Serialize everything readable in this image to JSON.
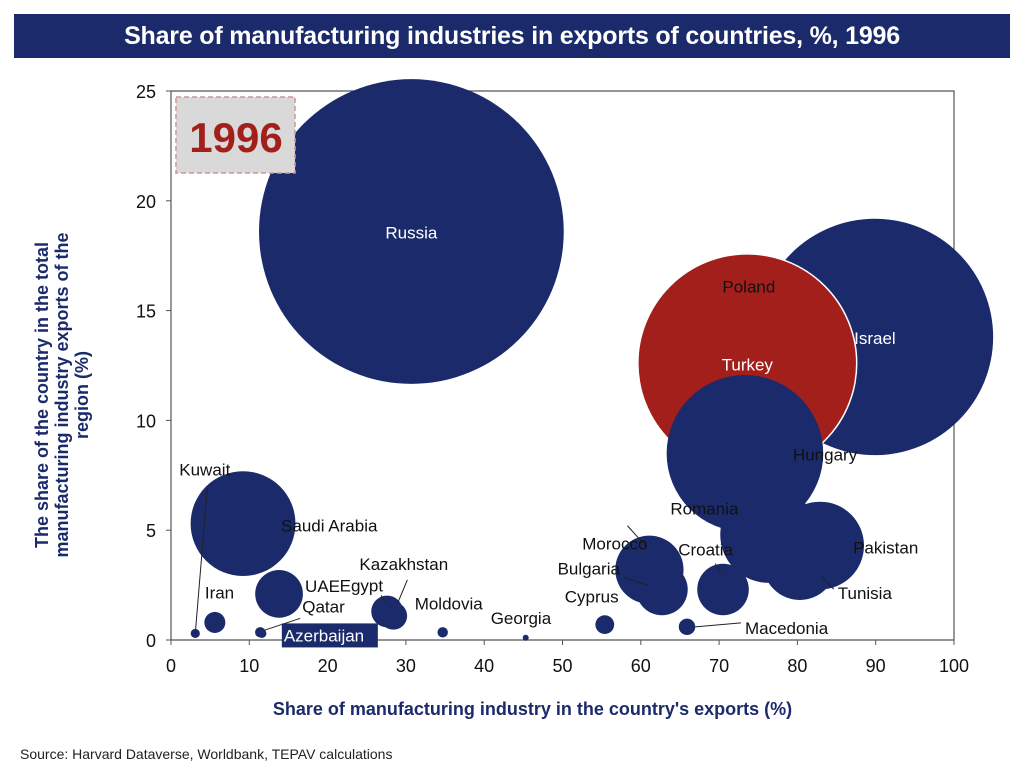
{
  "title": "Share of manufacturing industries in exports of countries, %, 1996",
  "source": "Source: Harvard Dataverse, Worldbank, TEPAV calculations",
  "year_badge": "1996",
  "colors": {
    "title_bg": "#1b2a6b",
    "bubble": "#1b2a6b",
    "highlight": "#a31f1b",
    "axis_label": "#1b2a6b",
    "badge_text": "#a31f1b",
    "badge_bg": "#d9d9d9"
  },
  "chart_data": {
    "type": "scatter",
    "title": "Share of manufacturing industries in exports of countries, %, 1996",
    "xlabel": "Share of manufacturing industry in the country's exports (%)",
    "ylabel": "The share of the country in the total manufacturing industry exports of the region (%)",
    "xlim": [
      0,
      100
    ],
    "ylim": [
      0,
      25
    ],
    "xticks": [
      0,
      10,
      20,
      30,
      40,
      50,
      60,
      70,
      80,
      90,
      100
    ],
    "yticks": [
      0,
      5,
      10,
      15,
      20,
      25
    ],
    "bubble_size": "proportional to y",
    "grid": false,
    "points": [
      {
        "name": "Russia",
        "x": 30.7,
        "y": 18.6
      },
      {
        "name": "Poland",
        "x": 73.8,
        "y": 13.4
      },
      {
        "name": "Israel",
        "x": 89.9,
        "y": 13.8
      },
      {
        "name": "Turkey",
        "x": 73.6,
        "y": 12.6,
        "highlight": true
      },
      {
        "name": "Hungary",
        "x": 73.3,
        "y": 8.5
      },
      {
        "name": "Saudi Arabia",
        "x": 9.2,
        "y": 5.3
      },
      {
        "name": "Romania",
        "x": 76.3,
        "y": 4.8
      },
      {
        "name": "Pakistan",
        "x": 82.9,
        "y": 4.3
      },
      {
        "name": "Tunisia",
        "x": 80.3,
        "y": 3.5
      },
      {
        "name": "Morocco",
        "x": 61.1,
        "y": 3.2
      },
      {
        "name": "Bulgaria",
        "x": 62.7,
        "y": 2.3
      },
      {
        "name": "Croatia",
        "x": 70.5,
        "y": 2.3
      },
      {
        "name": "UAE",
        "x": 13.8,
        "y": 2.1
      },
      {
        "name": "Egypt",
        "x": 27.6,
        "y": 1.3
      },
      {
        "name": "Kazakhstan",
        "x": 28.4,
        "y": 1.1
      },
      {
        "name": "Iran",
        "x": 5.6,
        "y": 0.8
      },
      {
        "name": "Cyprus",
        "x": 55.4,
        "y": 0.7
      },
      {
        "name": "Macedonia",
        "x": 65.9,
        "y": 0.6
      },
      {
        "name": "Moldovia",
        "x": 34.7,
        "y": 0.35
      },
      {
        "name": "Qatar",
        "x": 11.4,
        "y": 0.35
      },
      {
        "name": "Azerbaijan",
        "x": 11.6,
        "y": 0.3,
        "boxed": true
      },
      {
        "name": "Kuwait",
        "x": 3.1,
        "y": 0.3
      },
      {
        "name": "Georgia",
        "x": 45.3,
        "y": 0.1
      }
    ]
  }
}
